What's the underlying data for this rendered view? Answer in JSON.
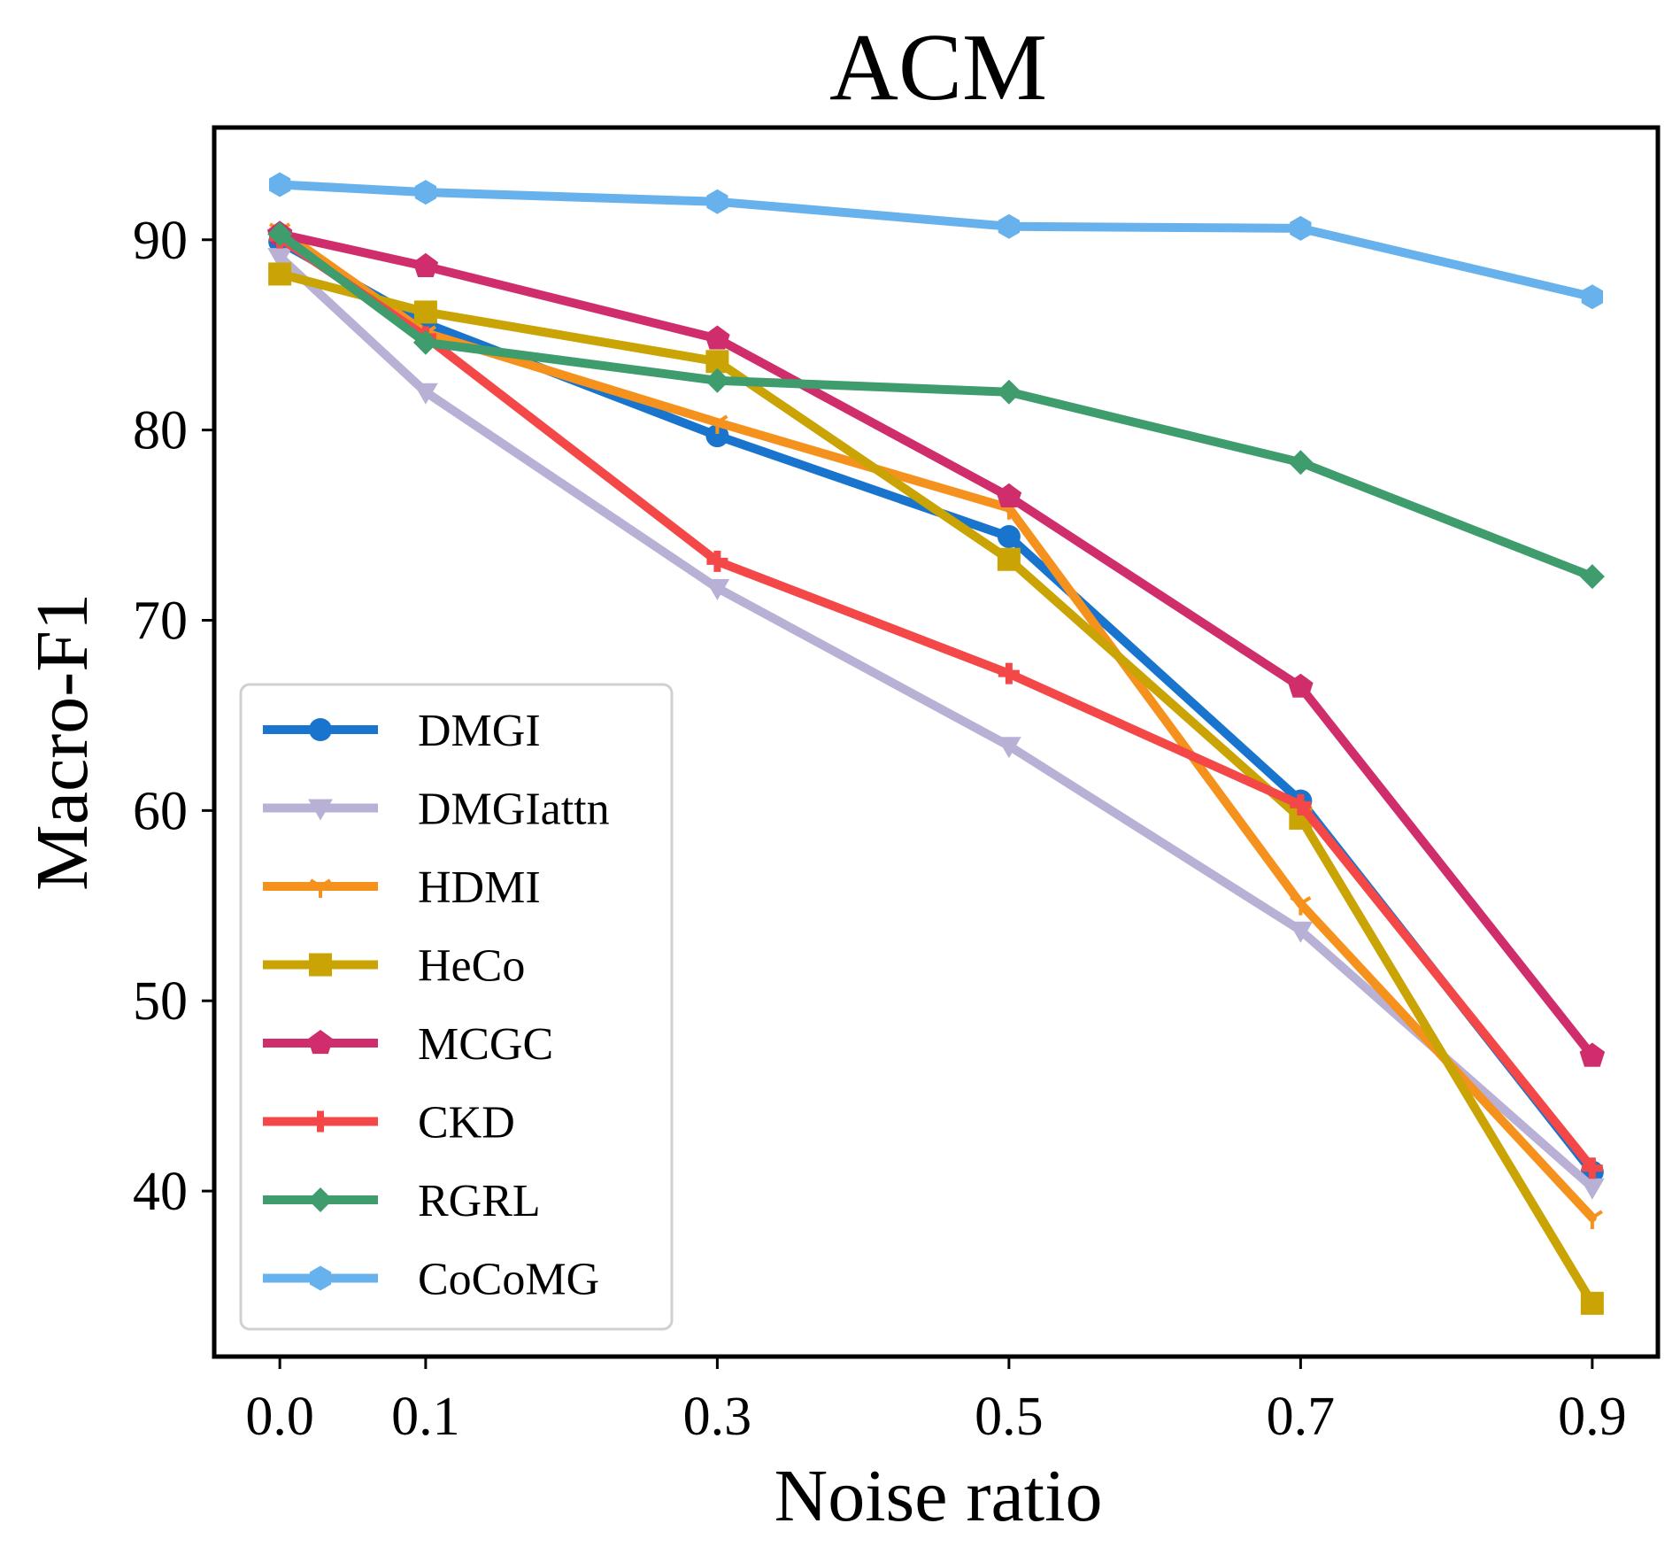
{
  "chart_data": {
    "type": "line",
    "title": "ACM",
    "xlabel": "Noise ratio",
    "ylabel": "Macro-F1",
    "x": [
      0.0,
      0.1,
      0.3,
      0.5,
      0.7,
      0.9
    ],
    "x_tick_labels": [
      "0.0",
      "0.1",
      "0.3",
      "0.5",
      "0.7",
      "0.9"
    ],
    "y_ticks": [
      40,
      50,
      60,
      70,
      80,
      90
    ],
    "y_tick_labels": [
      "40",
      "50",
      "60",
      "70",
      "80",
      "90"
    ],
    "xlim": [
      -0.045,
      0.945
    ],
    "ylim": [
      31.3,
      95.9
    ],
    "grid": false,
    "legend_position": "lower-left",
    "series": [
      {
        "name": "DMGI",
        "color": "#1874cd",
        "marker": "circle",
        "values": [
          89.9,
          85.6,
          79.7,
          74.4,
          60.5,
          41.0
        ]
      },
      {
        "name": "DMGIattn",
        "color": "#b9b1d5",
        "marker": "triangle-down",
        "values": [
          89.1,
          82.0,
          71.7,
          63.4,
          53.7,
          40.2
        ]
      },
      {
        "name": "HDMI",
        "color": "#f5921e",
        "marker": "tri-down",
        "values": [
          90.5,
          85.1,
          80.4,
          75.9,
          55.1,
          38.6
        ]
      },
      {
        "name": "HeCo",
        "color": "#c9a404",
        "marker": "square",
        "values": [
          88.2,
          86.2,
          83.6,
          73.2,
          59.6,
          34.1
        ]
      },
      {
        "name": "MCGC",
        "color": "#cf2d6b",
        "marker": "pentagon",
        "values": [
          90.3,
          88.6,
          84.8,
          76.5,
          66.5,
          47.1
        ]
      },
      {
        "name": "CKD",
        "color": "#f44848",
        "marker": "plus",
        "values": [
          90.1,
          84.9,
          73.1,
          67.2,
          60.3,
          41.2
        ]
      },
      {
        "name": "RGRL",
        "color": "#3e9c6d",
        "marker": "diamond",
        "values": [
          90.3,
          84.6,
          82.6,
          82.0,
          78.3,
          72.3
        ]
      },
      {
        "name": "CoCoMG",
        "color": "#67b2ec",
        "marker": "hexagon",
        "values": [
          92.9,
          92.5,
          92.0,
          90.7,
          90.6,
          87.0
        ]
      }
    ]
  }
}
